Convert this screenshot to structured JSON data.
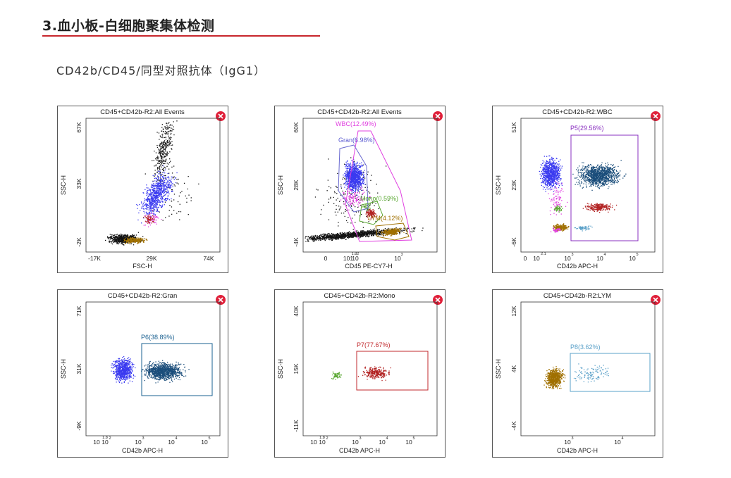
{
  "heading": "3.血小板-白细胞聚集体检测",
  "subheading": "CD42b/CD45/同型对照抗体（IgG1）",
  "colors": {
    "accent": "#c8262c",
    "blue": "#3a3af0",
    "black": "#111111",
    "brown": "#a07000",
    "gran": "#1a4d7a",
    "pink": "#e040e0",
    "red": "#b22222",
    "green": "#5aa832",
    "lightblue": "#5aa0c8"
  },
  "panels": [
    {
      "title": "CD45+CD42b-R2:All Events",
      "xlabel": "FSC-H",
      "ylabel": "SSC-H",
      "xticks": [
        "-17K",
        "29K",
        "74K"
      ],
      "yticks": [
        "67K",
        "33K",
        "-2K"
      ],
      "close_icon": "close-icon"
    },
    {
      "title": "CD45+CD42b-R2:All Events",
      "xlabel": "CD45 PE-CY7-H",
      "ylabel": "SSC-H",
      "xticks": [
        "0",
        "101",
        "10",
        "1.82",
        "10",
        "3"
      ],
      "yticks": [
        "60K",
        "28K",
        "-4K"
      ],
      "close_icon": "close-icon",
      "gates": [
        "WBC(12.49%)",
        "Gran(6.98%)",
        "Mono(0.59%)",
        "LYM(4.12%)"
      ]
    },
    {
      "title": "CD45+CD42b-R2:WBC",
      "xlabel": "CD42b APC-H",
      "ylabel": "SSC-H",
      "xticks": [
        "0",
        "10",
        "2.1",
        "10",
        "3",
        "10",
        "4",
        "10",
        "5"
      ],
      "yticks": [
        "51K",
        "23K",
        "-6K"
      ],
      "close_icon": "close-icon",
      "gates": [
        "P5(29.56%)"
      ]
    },
    {
      "title": "CD45+CD42b-R2:Gran",
      "xlabel": "CD42b APC-H",
      "ylabel": "SSC-H",
      "xticks": [
        "10",
        "10",
        "1.8",
        "2",
        "10",
        "3",
        "10",
        "4",
        "10",
        "5"
      ],
      "yticks": [
        "71K",
        "31K",
        "-9K"
      ],
      "close_icon": "close-icon",
      "gates": [
        "P6(38.89%)"
      ]
    },
    {
      "title": "CD45+CD42b-R2:Mono",
      "xlabel": "CD42b APC-H",
      "ylabel": "SSC-H",
      "xticks": [
        "10",
        "10",
        "1.8",
        "2",
        "10",
        "3",
        "10",
        "4",
        "10",
        "5"
      ],
      "yticks": [
        "40K",
        "15K",
        "-11K"
      ],
      "close_icon": "close-icon",
      "gates": [
        "P7(77.67%)"
      ]
    },
    {
      "title": "CD45+CD42b-R2:LYM",
      "xlabel": "CD42b APC-H",
      "ylabel": "SSC-H",
      "xticks": [
        "10",
        "3",
        "10",
        "4"
      ],
      "yticks": [
        "12K",
        "4K",
        "-4K"
      ],
      "close_icon": "close-icon",
      "gates": [
        "P8(3.62%)"
      ]
    }
  ],
  "chart_data": [
    {
      "type": "scatter",
      "title": "CD45+CD42b-R2:All Events",
      "xlabel": "FSC-H",
      "ylabel": "SSC-H",
      "xlim": [
        -17000,
        74000
      ],
      "ylim": [
        -2000,
        67000
      ],
      "series": [
        {
          "color": "#3a3af0",
          "cx": 20000,
          "cy": 24000,
          "n": 700
        },
        {
          "color": "#111111",
          "cx": 10000,
          "cy": 1500,
          "n": 500
        },
        {
          "color": "#a07000",
          "cx": 13000,
          "cy": 1000,
          "n": 200
        }
      ]
    },
    {
      "type": "scatter",
      "title": "CD45+CD42b-R2:All Events",
      "xlabel": "CD45 PE-CY7-H",
      "ylabel": "SSC-H",
      "ylim": [
        -4000,
        60000
      ],
      "gates": [
        "WBC(12.49%)",
        "Gran(6.98%)",
        "Mono(0.59%)",
        "LYM(4.12%)"
      ]
    },
    {
      "type": "scatter",
      "title": "CD45+CD42b-R2:WBC",
      "xlabel": "CD42b APC-H",
      "ylabel": "SSC-H",
      "ylim": [
        -6000,
        51000
      ],
      "gates": [
        "P5(29.56%)"
      ]
    },
    {
      "type": "scatter",
      "title": "CD45+CD42b-R2:Gran",
      "xlabel": "CD42b APC-H",
      "ylabel": "SSC-H",
      "ylim": [
        -9000,
        71000
      ],
      "gates": [
        "P6(38.89%)"
      ]
    },
    {
      "type": "scatter",
      "title": "CD45+CD42b-R2:Mono",
      "xlabel": "CD42b APC-H",
      "ylabel": "SSC-H",
      "ylim": [
        -11000,
        40000
      ],
      "gates": [
        "P7(77.67%)"
      ]
    },
    {
      "type": "scatter",
      "title": "CD45+CD42b-R2:LYM",
      "xlabel": "CD42b APC-H",
      "ylabel": "SSC-H",
      "ylim": [
        -4000,
        12000
      ],
      "gates": [
        "P8(3.62%)"
      ]
    }
  ]
}
